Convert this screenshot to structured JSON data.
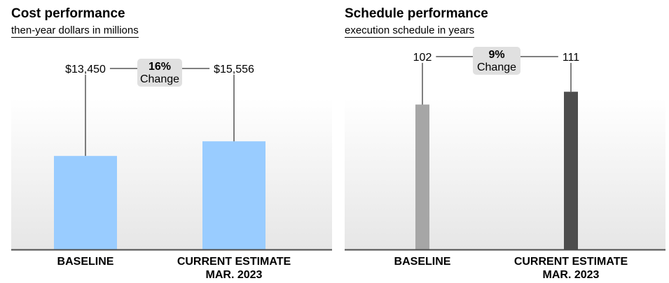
{
  "charts": [
    {
      "title": "Cost performance",
      "subtitle": "then-year dollars in millions"
    },
    {
      "title": "Schedule performance",
      "subtitle": "execution schedule in years"
    }
  ],
  "chart_data": [
    {
      "type": "bar",
      "title": "Cost performance",
      "subtitle": "then-year dollars in millions",
      "categories": [
        "BASELINE",
        "CURRENT ESTIMATE\nMAR. 2023"
      ],
      "values": [
        13450,
        15556
      ],
      "value_labels": [
        "$13,450",
        "$15,556"
      ],
      "change": {
        "percent": "16%",
        "label": "Change"
      },
      "colors": [
        "#99ccff",
        "#99ccff"
      ],
      "ylim": [
        0,
        20000
      ],
      "grid": false,
      "legend": "none"
    },
    {
      "type": "bar",
      "title": "Schedule performance",
      "subtitle": "execution schedule in years",
      "categories": [
        "BASELINE",
        "CURRENT ESTIMATE\nMAR. 2023"
      ],
      "values": [
        102,
        111
      ],
      "value_labels": [
        "102",
        "111"
      ],
      "change": {
        "percent": "9%",
        "label": "Change"
      },
      "colors": [
        "#a6a6a6",
        "#4d4d4d"
      ],
      "ylim": [
        0,
        120
      ],
      "grid": false,
      "legend": "none"
    }
  ]
}
